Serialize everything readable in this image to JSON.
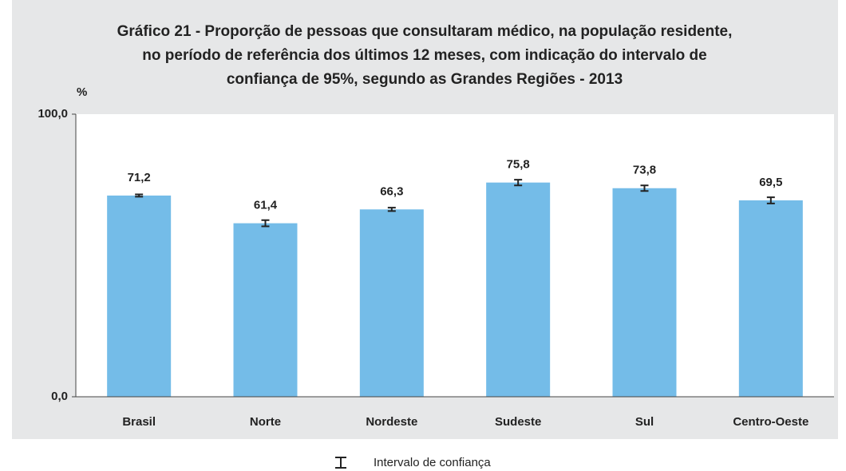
{
  "chart_data": {
    "type": "bar",
    "title": [
      "Gráfico 21 - Proporção de pessoas que consultaram médico, na população residente,",
      "no período de referência dos últimos 12 meses, com indicação do intervalo de",
      "confiança de 95%, segundo as Grandes Regiões - 2013"
    ],
    "y_label": "%",
    "categories": [
      "Brasil",
      "Norte",
      "Nordeste",
      "Sudeste",
      "Sul",
      "Centro-Oeste"
    ],
    "values": [
      71.2,
      61.4,
      66.3,
      75.8,
      73.8,
      69.5
    ],
    "value_labels": [
      "71,2",
      "61,4",
      "66,3",
      "75,8",
      "73,8",
      "69,5"
    ],
    "errors": [
      0.4,
      1.1,
      0.6,
      1.0,
      1.0,
      1.1
    ],
    "color": "#74bce8",
    "ylim": [
      0,
      100
    ],
    "yticks": [
      {
        "value": 0,
        "label": "0,0"
      },
      {
        "value": 100,
        "label": "100,0"
      }
    ],
    "legend": "Intervalo de confiança"
  }
}
